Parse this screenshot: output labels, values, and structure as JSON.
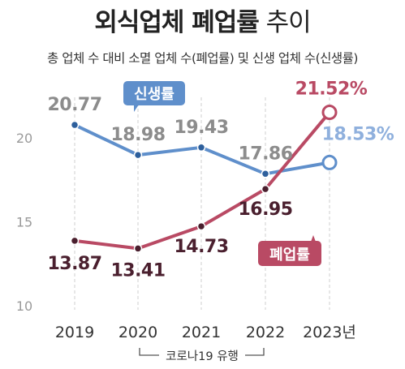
{
  "title_bold": "외식업체 폐업률",
  "title_light": "추이",
  "subtitle": "총 업체 수 대비 소멸 업체 수(폐업률) 및 신생 업체 수(신생률)",
  "colors": {
    "sinsaeng": "#5f8fcb",
    "pyeeop": "#b94a64",
    "dark": "#4a1f2e",
    "gray_text": "#8a8a8a",
    "grid": "#cfcfcf"
  },
  "chart_data": {
    "type": "line",
    "categories": [
      "2019",
      "2020",
      "2021",
      "2022",
      "2023년"
    ],
    "ylim": [
      10,
      22.5
    ],
    "yticks": [
      "10",
      "15",
      "20"
    ],
    "series": [
      {
        "name": "신생률",
        "key": "sinsaeng",
        "values": [
          20.77,
          18.98,
          19.43,
          17.86,
          18.53
        ],
        "labels": [
          "20.77",
          "18.98",
          "19.43",
          "17.86",
          "18.53%"
        ]
      },
      {
        "name": "폐업률",
        "key": "pyeeop",
        "values": [
          13.87,
          13.41,
          14.73,
          16.95,
          21.52
        ],
        "labels": [
          "13.87",
          "13.41",
          "14.73",
          "16.95",
          "21.52%"
        ]
      }
    ],
    "annotation": "코로나19 유행"
  }
}
